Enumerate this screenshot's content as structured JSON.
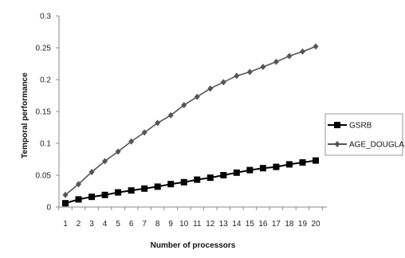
{
  "chart_data": {
    "type": "line",
    "x": [
      1,
      2,
      3,
      4,
      5,
      6,
      7,
      8,
      9,
      10,
      11,
      12,
      13,
      14,
      15,
      16,
      17,
      18,
      19,
      20
    ],
    "xlabel": "Number of processors",
    "ylabel": "Temporal performance",
    "ylim": [
      0,
      0.3
    ],
    "yticks": [
      0,
      0.05,
      0.1,
      0.15,
      0.2,
      0.25,
      0.3
    ],
    "ytick_labels": [
      "0",
      "0.05",
      "0.1",
      "0.15",
      "0.2",
      "0.25",
      "0.3"
    ],
    "xtick_labels": [
      "1",
      "2",
      "3",
      "4",
      "5",
      "6",
      "7",
      "8",
      "9",
      "10",
      "11",
      "12",
      "13",
      "14",
      "15",
      "16",
      "17",
      "18",
      "19",
      "20"
    ],
    "grid": false,
    "legend_position": "right",
    "series": [
      {
        "name": "GSRB",
        "marker": "square",
        "color": "#000000",
        "values": [
          0.006,
          0.012,
          0.016,
          0.019,
          0.023,
          0.026,
          0.029,
          0.032,
          0.036,
          0.039,
          0.043,
          0.046,
          0.05,
          0.054,
          0.058,
          0.061,
          0.063,
          0.067,
          0.07,
          0.073
        ]
      },
      {
        "name": "AGE_DOUGLAS",
        "marker": "diamond",
        "color": "#555555",
        "values": [
          0.019,
          0.036,
          0.055,
          0.072,
          0.087,
          0.103,
          0.117,
          0.132,
          0.144,
          0.16,
          0.173,
          0.186,
          0.196,
          0.206,
          0.212,
          0.22,
          0.228,
          0.237,
          0.244,
          0.252
        ]
      }
    ]
  }
}
